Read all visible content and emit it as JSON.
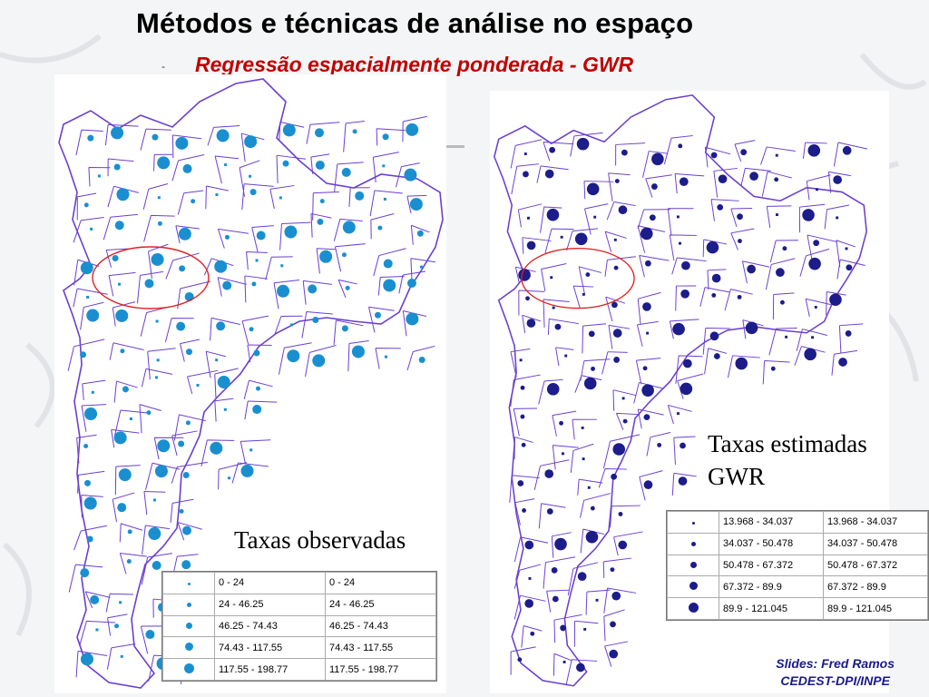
{
  "title": "Métodos e técnicas de análise no espaço",
  "subtitle": "Regressão espacialmente ponderada - GWR",
  "bullet": "-",
  "maps": {
    "observed": {
      "caption": "Taxas observadas",
      "dot_color": "#1a8fd0",
      "legend": [
        {
          "range": "0 - 24",
          "label": "0 - 24"
        },
        {
          "range": "24 - 46.25",
          "label": "24 - 46.25"
        },
        {
          "range": "46.25 - 74.43",
          "label": "46.25 - 74.43"
        },
        {
          "range": "74.43 - 117.55",
          "label": "74.43 - 117.55"
        },
        {
          "range": "117.55 - 198.77",
          "label": "117.55 - 198.77"
        }
      ]
    },
    "estimated": {
      "caption_line1": "Taxas estimadas",
      "caption_line2": "GWR",
      "dot_color": "#1c1c8a",
      "legend": [
        {
          "range": "13.968 - 34.037",
          "label": "13.968 - 34.037"
        },
        {
          "range": "34.037 - 50.478",
          "label": "34.037 - 50.478"
        },
        {
          "range": "50.478 - 67.372",
          "label": "50.478 - 67.372"
        },
        {
          "range": "67.372 - 89.9",
          "label": "67.372 - 89.9"
        },
        {
          "range": "89.9 - 121.045",
          "label": "89.9 - 121.045"
        }
      ]
    }
  },
  "colors": {
    "boundary": "#6a3fd0",
    "highlight_ellipse": "#e02020",
    "title": "#000000",
    "subtitle": "#c00000",
    "credit": "#1a1a8c"
  },
  "credit": {
    "line1": "Slides: Fred Ramos",
    "line2": "CEDEST-DPI/INPE"
  }
}
